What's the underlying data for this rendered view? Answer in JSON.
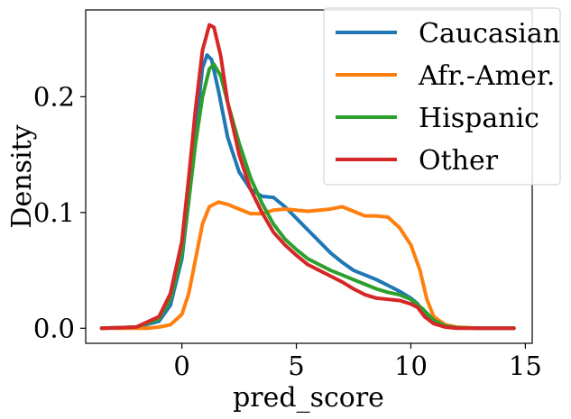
{
  "chart_data": {
    "type": "line",
    "xlabel": "pred_score",
    "ylabel": "Density",
    "xlim": [
      -4.2,
      15.3
    ],
    "ylim": [
      -0.013,
      0.275
    ],
    "x_ticks": [
      0,
      5,
      10,
      15
    ],
    "x_tick_labels": [
      "0",
      "5",
      "10",
      "15"
    ],
    "y_ticks": [
      0.0,
      0.1,
      0.2
    ],
    "y_tick_labels": [
      "0.0",
      "0.1",
      "0.2"
    ],
    "grid": false,
    "legend_position": "top-right",
    "series": [
      {
        "name": "Caucasian",
        "color": "#1f77b4",
        "points": [
          [
            -3.5,
            0
          ],
          [
            -2,
            0.001
          ],
          [
            -1,
            0.006
          ],
          [
            -0.5,
            0.02
          ],
          [
            0,
            0.06
          ],
          [
            0.3,
            0.11
          ],
          [
            0.6,
            0.17
          ],
          [
            0.9,
            0.225
          ],
          [
            1.1,
            0.236
          ],
          [
            1.3,
            0.232
          ],
          [
            1.6,
            0.205
          ],
          [
            2,
            0.165
          ],
          [
            2.5,
            0.135
          ],
          [
            3,
            0.12
          ],
          [
            3.5,
            0.114
          ],
          [
            4,
            0.113
          ],
          [
            4.5,
            0.105
          ],
          [
            5,
            0.095
          ],
          [
            5.5,
            0.085
          ],
          [
            6,
            0.075
          ],
          [
            6.5,
            0.065
          ],
          [
            7,
            0.057
          ],
          [
            7.5,
            0.05
          ],
          [
            8,
            0.046
          ],
          [
            8.5,
            0.042
          ],
          [
            9,
            0.037
          ],
          [
            9.5,
            0.032
          ],
          [
            10,
            0.026
          ],
          [
            10.3,
            0.021
          ],
          [
            10.6,
            0.012
          ],
          [
            11,
            0.005
          ],
          [
            11.5,
            0.002
          ],
          [
            12,
            0.0005
          ],
          [
            13,
            0
          ],
          [
            14.5,
            0
          ]
        ]
      },
      {
        "name": "Afr.-Amer.",
        "color": "#ff7f0e",
        "points": [
          [
            -3.5,
            0
          ],
          [
            -1.5,
            0
          ],
          [
            -1,
            0.001
          ],
          [
            -0.5,
            0.003
          ],
          [
            0,
            0.012
          ],
          [
            0.3,
            0.03
          ],
          [
            0.6,
            0.06
          ],
          [
            0.9,
            0.09
          ],
          [
            1.2,
            0.105
          ],
          [
            1.6,
            0.109
          ],
          [
            2,
            0.107
          ],
          [
            2.5,
            0.103
          ],
          [
            3,
            0.099
          ],
          [
            3.5,
            0.099
          ],
          [
            4,
            0.102
          ],
          [
            4.5,
            0.103
          ],
          [
            5,
            0.102
          ],
          [
            5.5,
            0.101
          ],
          [
            6,
            0.102
          ],
          [
            6.5,
            0.103
          ],
          [
            7,
            0.105
          ],
          [
            7.5,
            0.101
          ],
          [
            8,
            0.097
          ],
          [
            8.5,
            0.097
          ],
          [
            9,
            0.096
          ],
          [
            9.5,
            0.087
          ],
          [
            10,
            0.072
          ],
          [
            10.4,
            0.05
          ],
          [
            10.7,
            0.025
          ],
          [
            11,
            0.01
          ],
          [
            11.5,
            0.003
          ],
          [
            12,
            0.001
          ],
          [
            13,
            0
          ],
          [
            14.5,
            0
          ]
        ]
      },
      {
        "name": "Hispanic",
        "color": "#2ca02c",
        "points": [
          [
            -3.5,
            0
          ],
          [
            -2,
            0.001
          ],
          [
            -1,
            0.008
          ],
          [
            -0.5,
            0.025
          ],
          [
            0,
            0.065
          ],
          [
            0.3,
            0.11
          ],
          [
            0.6,
            0.16
          ],
          [
            0.9,
            0.2
          ],
          [
            1.2,
            0.224
          ],
          [
            1.4,
            0.228
          ],
          [
            1.7,
            0.218
          ],
          [
            2,
            0.195
          ],
          [
            2.5,
            0.16
          ],
          [
            3,
            0.13
          ],
          [
            3.5,
            0.108
          ],
          [
            4,
            0.09
          ],
          [
            4.5,
            0.077
          ],
          [
            5,
            0.068
          ],
          [
            5.5,
            0.06
          ],
          [
            6,
            0.055
          ],
          [
            6.5,
            0.05
          ],
          [
            7,
            0.046
          ],
          [
            7.5,
            0.042
          ],
          [
            8,
            0.038
          ],
          [
            8.5,
            0.034
          ],
          [
            9,
            0.031
          ],
          [
            9.5,
            0.029
          ],
          [
            10,
            0.025
          ],
          [
            10.5,
            0.017
          ],
          [
            11,
            0.007
          ],
          [
            11.5,
            0.002
          ],
          [
            12,
            0.0005
          ],
          [
            13,
            0
          ],
          [
            14.5,
            0
          ]
        ]
      },
      {
        "name": "Other",
        "color": "#d62728",
        "points": [
          [
            -3.5,
            0
          ],
          [
            -2,
            0.001
          ],
          [
            -1,
            0.01
          ],
          [
            -0.5,
            0.03
          ],
          [
            0,
            0.075
          ],
          [
            0.3,
            0.13
          ],
          [
            0.6,
            0.19
          ],
          [
            0.9,
            0.24
          ],
          [
            1.2,
            0.262
          ],
          [
            1.4,
            0.26
          ],
          [
            1.7,
            0.235
          ],
          [
            2,
            0.195
          ],
          [
            2.5,
            0.15
          ],
          [
            3,
            0.12
          ],
          [
            3.5,
            0.1
          ],
          [
            4,
            0.083
          ],
          [
            4.5,
            0.072
          ],
          [
            5,
            0.063
          ],
          [
            5.5,
            0.055
          ],
          [
            6,
            0.05
          ],
          [
            6.5,
            0.045
          ],
          [
            7,
            0.04
          ],
          [
            7.5,
            0.034
          ],
          [
            8,
            0.029
          ],
          [
            8.5,
            0.026
          ],
          [
            9,
            0.025
          ],
          [
            9.5,
            0.024
          ],
          [
            10,
            0.021
          ],
          [
            10.3,
            0.018
          ],
          [
            10.6,
            0.01
          ],
          [
            11,
            0.004
          ],
          [
            11.5,
            0.001
          ],
          [
            12,
            0
          ],
          [
            13,
            0
          ],
          [
            14.5,
            0
          ]
        ]
      }
    ]
  }
}
